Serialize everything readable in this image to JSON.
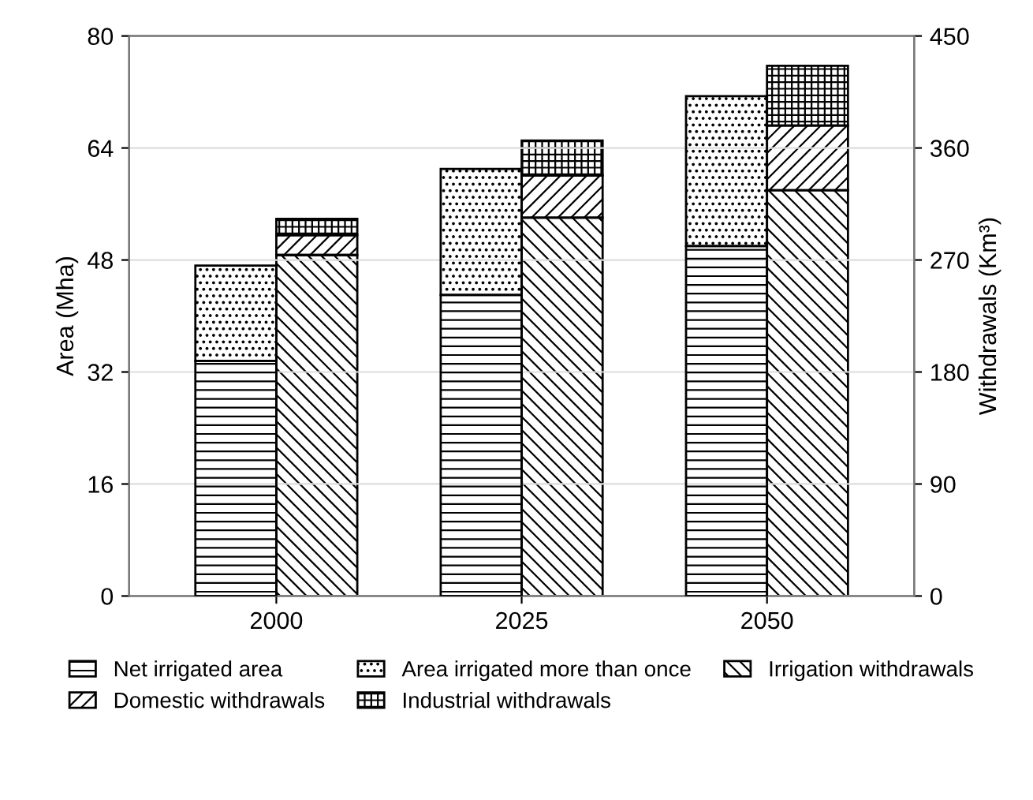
{
  "chart_data": {
    "type": "bar",
    "stacked": true,
    "ylabel": "Area (Mha)",
    "y2label": "Withdrawals (Km³)",
    "categories": [
      "2000",
      "2025",
      "2050"
    ],
    "series": [
      {
        "name": "Net irrigated area",
        "color": "#000000",
        "values": [
          33.6,
          43.0,
          50.0
        ]
      },
      {
        "name": "Area irrigated more than once",
        "color": "#000000",
        "values": [
          13.6,
          18.0,
          21.4
        ]
      },
      {
        "name": "Irrigation withdrawals",
        "color": "#000000",
        "axis": "y2",
        "values": [
          274,
          304,
          326
        ]
      },
      {
        "name": "Domestic withdrawals",
        "color": "#000000",
        "axis": "y2",
        "values": [
          16,
          34,
          52
        ]
      },
      {
        "name": "Industrial withdrawals",
        "color": "#000000",
        "axis": "y2",
        "values": [
          13,
          28,
          48
        ]
      }
    ],
    "ylim": [
      0,
      80
    ],
    "yticks": [
      0,
      16,
      32,
      48,
      64,
      80
    ],
    "y2lim": [
      0,
      450
    ],
    "y2ticks": [
      0,
      90,
      180,
      270,
      360,
      450
    ],
    "grid": "y",
    "legend": "bottom"
  }
}
